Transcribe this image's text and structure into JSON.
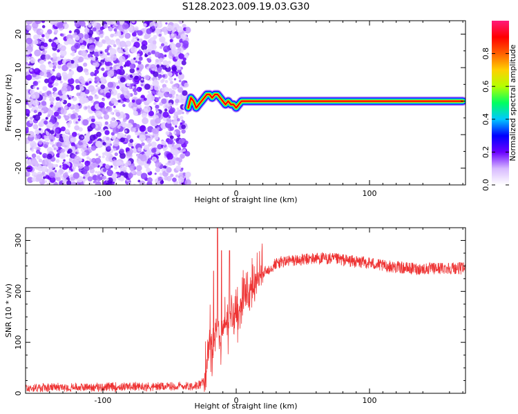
{
  "title": "S128.2023.009.19.03.G30",
  "chart_data": [
    {
      "type": "heatmap",
      "xlabel": "Height of straight line (km)",
      "ylabel": "Frequency (Hz)",
      "xlim": [
        -158,
        172
      ],
      "ylim": [
        -25,
        24
      ],
      "xticks": [
        -100,
        0,
        100
      ],
      "yticks": [
        -20,
        -10,
        0,
        10,
        20
      ],
      "noise_region_x": [
        -158,
        -36
      ],
      "trace_x": [
        -36,
        -34,
        -32,
        -30,
        -28,
        -26,
        -24,
        -22,
        -20,
        -18,
        -16,
        -14,
        -12,
        -10,
        -8,
        -6,
        -4,
        -2,
        0,
        2,
        4,
        6,
        8,
        10,
        20,
        40,
        60,
        80,
        100,
        120,
        140,
        160,
        170
      ],
      "trace_y": [
        -2,
        1,
        0,
        -2,
        -1,
        0,
        1,
        2,
        2,
        1,
        2,
        2,
        1,
        0,
        -1,
        0,
        -1,
        -1,
        -2,
        -1,
        0,
        0,
        0,
        0,
        0,
        0,
        0,
        0,
        0,
        0,
        0,
        0,
        0
      ],
      "colorbar": {
        "label": "Normalized spectral amplitude",
        "ticks": [
          "0.0",
          "0.2",
          "0.4",
          "0.6",
          "0.8"
        ],
        "tick_values": [
          0.0,
          0.2,
          0.4,
          0.6,
          0.8
        ],
        "range": [
          0,
          1
        ],
        "colors": [
          "#ffffff",
          "#d7b9ff",
          "#6a00ff",
          "#0000ff",
          "#00c8ff",
          "#00ff60",
          "#b4ff00",
          "#ffd000",
          "#ff6000",
          "#ff0000",
          "#ff1a7a"
        ]
      }
    },
    {
      "type": "line",
      "xlabel": "Height of straight line (km)",
      "ylabel": "SNR (10 * v/v)",
      "xlim": [
        -158,
        172
      ],
      "ylim": [
        0,
        325
      ],
      "xticks": [
        -100,
        0,
        100
      ],
      "yticks": [
        0,
        100,
        200,
        300
      ],
      "color": "#ee3333",
      "series_x": [
        -158,
        -140,
        -120,
        -100,
        -80,
        -60,
        -40,
        -30,
        -24,
        -22,
        -20,
        -18,
        -16,
        -14,
        -12,
        -10,
        -8,
        -6,
        -4,
        -2,
        0,
        2,
        4,
        6,
        8,
        10,
        12,
        14,
        16,
        18,
        20,
        25,
        30,
        35,
        40,
        50,
        60,
        70,
        80,
        90,
        100,
        110,
        120,
        130,
        140,
        150,
        160,
        172
      ],
      "series_mean": [
        10,
        11,
        12,
        12,
        13,
        13,
        14,
        15,
        22,
        60,
        120,
        80,
        110,
        150,
        95,
        130,
        140,
        120,
        150,
        150,
        160,
        170,
        180,
        185,
        190,
        200,
        210,
        220,
        225,
        230,
        235,
        245,
        255,
        258,
        260,
        262,
        265,
        264,
        262,
        258,
        256,
        250,
        248,
        245,
        244,
        245,
        246,
        245
      ],
      "spikes_x": [
        -14,
        -17,
        -11,
        -5,
        6
      ],
      "spikes_y": [
        325,
        240,
        280,
        280,
        225
      ]
    }
  ]
}
